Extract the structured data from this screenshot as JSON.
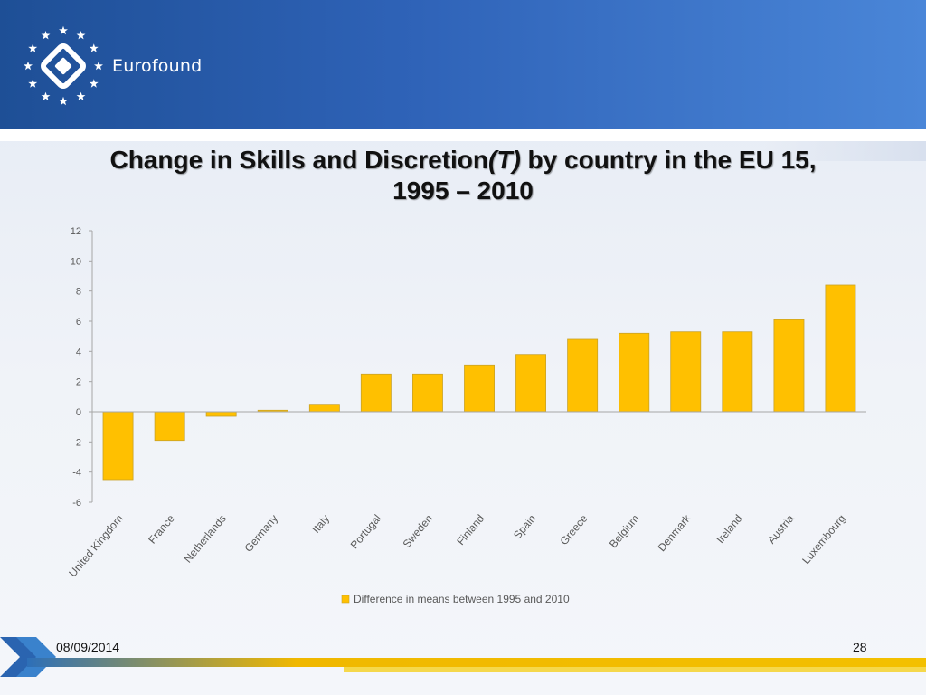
{
  "header": {
    "brand": "Eurofound"
  },
  "slide": {
    "title_part1": "Change in Skills and Discretion",
    "title_italic": "(T)",
    "title_part2": " by country in the EU 15,",
    "title_line2": "1995 – 2010"
  },
  "footer": {
    "date": "08/09/2014",
    "page": "28"
  },
  "colors": {
    "bar": "#FFC000",
    "bar_border": "#C9A227",
    "axis": "#A6A6A6",
    "text": "#595959"
  },
  "chart_data": {
    "type": "bar",
    "title": "",
    "xlabel": "",
    "ylabel": "",
    "ylim": [
      -6,
      12
    ],
    "yticks": [
      "12",
      "10",
      "8",
      "6",
      "4",
      "2",
      "0",
      "-2",
      "-4",
      "-6"
    ],
    "grid": false,
    "legend_position": "bottom",
    "categories": [
      "United Kingdom",
      "France",
      "Netherlands",
      "Germany",
      "Italy",
      "Portugal",
      "Sweden",
      "Finland",
      "Spain",
      "Greece",
      "Belgium",
      "Denmark",
      "Ireland",
      "Austria",
      "Luxembourg"
    ],
    "series": [
      {
        "name": "Difference in means between 1995 and 2010",
        "values": [
          -4.5,
          -1.9,
          -0.3,
          0.1,
          0.5,
          2.5,
          2.5,
          3.1,
          3.8,
          4.8,
          5.2,
          5.3,
          5.3,
          6.1,
          8.4
        ]
      }
    ]
  }
}
